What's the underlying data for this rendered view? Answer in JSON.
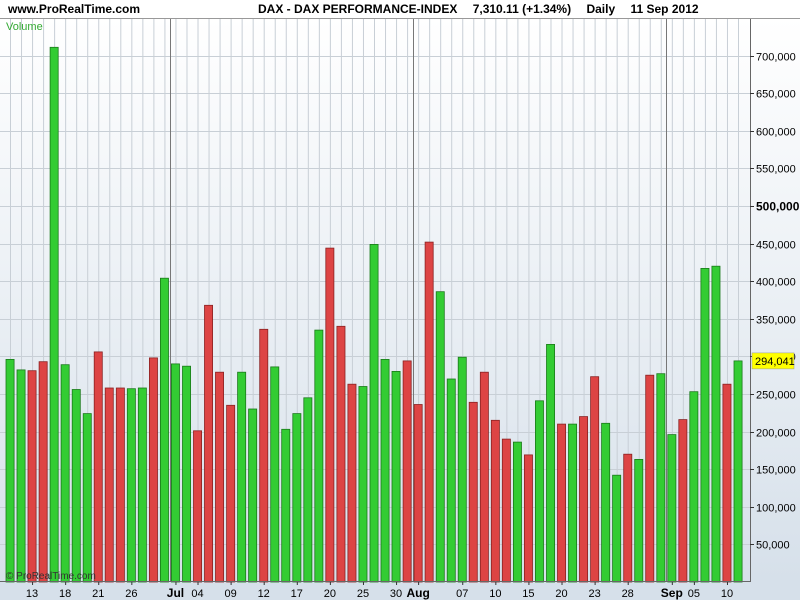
{
  "header": {
    "site": "www.ProRealTime.com",
    "instrument": "DAX - DAX PERFORMANCE-INDEX",
    "quote": "7,310.11 (+1.34%)",
    "period": "Daily",
    "date": "11 Sep 2012"
  },
  "panel_label": "Volume",
  "copyright": "© ProRealTime.com",
  "last_value_label": "294,041",
  "colors": {
    "up": "#33cc33",
    "down": "#dd4444",
    "last_value_bg": "#ffff00"
  },
  "chart_data": {
    "type": "bar",
    "ylim": [
      0,
      750000
    ],
    "yticks": [
      {
        "value": 50000,
        "label": "50,000"
      },
      {
        "value": 100000,
        "label": "100,000"
      },
      {
        "value": 150000,
        "label": "150,000"
      },
      {
        "value": 200000,
        "label": "200,000"
      },
      {
        "value": 250000,
        "label": "250,000"
      },
      {
        "value": 300000,
        "label": "300,000"
      },
      {
        "value": 350000,
        "label": "350,000"
      },
      {
        "value": 400000,
        "label": "400,000"
      },
      {
        "value": 450000,
        "label": "450,000"
      },
      {
        "value": 500000,
        "label": "500,000"
      },
      {
        "value": 550000,
        "label": "550,000"
      },
      {
        "value": 600000,
        "label": "600,000"
      },
      {
        "value": 650000,
        "label": "650,000"
      },
      {
        "value": 700000,
        "label": "700,000"
      }
    ],
    "xticks": [
      {
        "index": 2,
        "label": "13",
        "month": false
      },
      {
        "index": 5,
        "label": "18",
        "month": false
      },
      {
        "index": 8,
        "label": "21",
        "month": false
      },
      {
        "index": 11,
        "label": "26",
        "month": false
      },
      {
        "index": 15,
        "label": "Jul",
        "month": true
      },
      {
        "index": 17,
        "label": "04",
        "month": false
      },
      {
        "index": 20,
        "label": "09",
        "month": false
      },
      {
        "index": 23,
        "label": "12",
        "month": false
      },
      {
        "index": 26,
        "label": "17",
        "month": false
      },
      {
        "index": 29,
        "label": "20",
        "month": false
      },
      {
        "index": 32,
        "label": "25",
        "month": false
      },
      {
        "index": 35,
        "label": "30",
        "month": false
      },
      {
        "index": 37,
        "label": "Aug",
        "month": true
      },
      {
        "index": 41,
        "label": "07",
        "month": false
      },
      {
        "index": 44,
        "label": "10",
        "month": false
      },
      {
        "index": 47,
        "label": "15",
        "month": false
      },
      {
        "index": 50,
        "label": "20",
        "month": false
      },
      {
        "index": 53,
        "label": "23",
        "month": false
      },
      {
        "index": 56,
        "label": "28",
        "month": false
      },
      {
        "index": 60,
        "label": "Sep",
        "month": true
      },
      {
        "index": 62,
        "label": "05",
        "month": false
      },
      {
        "index": 65,
        "label": "10",
        "month": false
      }
    ],
    "month_separators": [
      15,
      37,
      60
    ],
    "bars": [
      {
        "v": 296000,
        "c": "up"
      },
      {
        "v": 282000,
        "c": "up"
      },
      {
        "v": 281000,
        "c": "down"
      },
      {
        "v": 293000,
        "c": "down"
      },
      {
        "v": 711000,
        "c": "up"
      },
      {
        "v": 289000,
        "c": "up"
      },
      {
        "v": 256000,
        "c": "up"
      },
      {
        "v": 224000,
        "c": "up"
      },
      {
        "v": 306000,
        "c": "down"
      },
      {
        "v": 258000,
        "c": "down"
      },
      {
        "v": 258000,
        "c": "down"
      },
      {
        "v": 257000,
        "c": "up"
      },
      {
        "v": 258000,
        "c": "up"
      },
      {
        "v": 298000,
        "c": "down"
      },
      {
        "v": 404000,
        "c": "up"
      },
      {
        "v": 290000,
        "c": "up"
      },
      {
        "v": 287000,
        "c": "up"
      },
      {
        "v": 201000,
        "c": "down"
      },
      {
        "v": 368000,
        "c": "down"
      },
      {
        "v": 279000,
        "c": "down"
      },
      {
        "v": 235000,
        "c": "down"
      },
      {
        "v": 279000,
        "c": "up"
      },
      {
        "v": 230000,
        "c": "up"
      },
      {
        "v": 336000,
        "c": "down"
      },
      {
        "v": 286000,
        "c": "up"
      },
      {
        "v": 203000,
        "c": "up"
      },
      {
        "v": 224000,
        "c": "up"
      },
      {
        "v": 245000,
        "c": "up"
      },
      {
        "v": 335000,
        "c": "up"
      },
      {
        "v": 444000,
        "c": "down"
      },
      {
        "v": 340000,
        "c": "down"
      },
      {
        "v": 263000,
        "c": "down"
      },
      {
        "v": 260000,
        "c": "up"
      },
      {
        "v": 449000,
        "c": "up"
      },
      {
        "v": 296000,
        "c": "up"
      },
      {
        "v": 280000,
        "c": "up"
      },
      {
        "v": 294000,
        "c": "down"
      },
      {
        "v": 236000,
        "c": "down"
      },
      {
        "v": 452000,
        "c": "down"
      },
      {
        "v": 386000,
        "c": "up"
      },
      {
        "v": 270000,
        "c": "up"
      },
      {
        "v": 299000,
        "c": "up"
      },
      {
        "v": 239000,
        "c": "down"
      },
      {
        "v": 279000,
        "c": "down"
      },
      {
        "v": 215000,
        "c": "down"
      },
      {
        "v": 190000,
        "c": "down"
      },
      {
        "v": 186000,
        "c": "up"
      },
      {
        "v": 169000,
        "c": "down"
      },
      {
        "v": 241000,
        "c": "up"
      },
      {
        "v": 316000,
        "c": "up"
      },
      {
        "v": 210000,
        "c": "down"
      },
      {
        "v": 210000,
        "c": "up"
      },
      {
        "v": 220000,
        "c": "down"
      },
      {
        "v": 273000,
        "c": "down"
      },
      {
        "v": 211000,
        "c": "up"
      },
      {
        "v": 142000,
        "c": "up"
      },
      {
        "v": 170000,
        "c": "down"
      },
      {
        "v": 163000,
        "c": "up"
      },
      {
        "v": 275000,
        "c": "down"
      },
      {
        "v": 277000,
        "c": "up"
      },
      {
        "v": 196000,
        "c": "up"
      },
      {
        "v": 216000,
        "c": "down"
      },
      {
        "v": 253000,
        "c": "up"
      },
      {
        "v": 417000,
        "c": "up"
      },
      {
        "v": 420000,
        "c": "up"
      },
      {
        "v": 263000,
        "c": "down"
      },
      {
        "v": 294041,
        "c": "up"
      }
    ]
  }
}
